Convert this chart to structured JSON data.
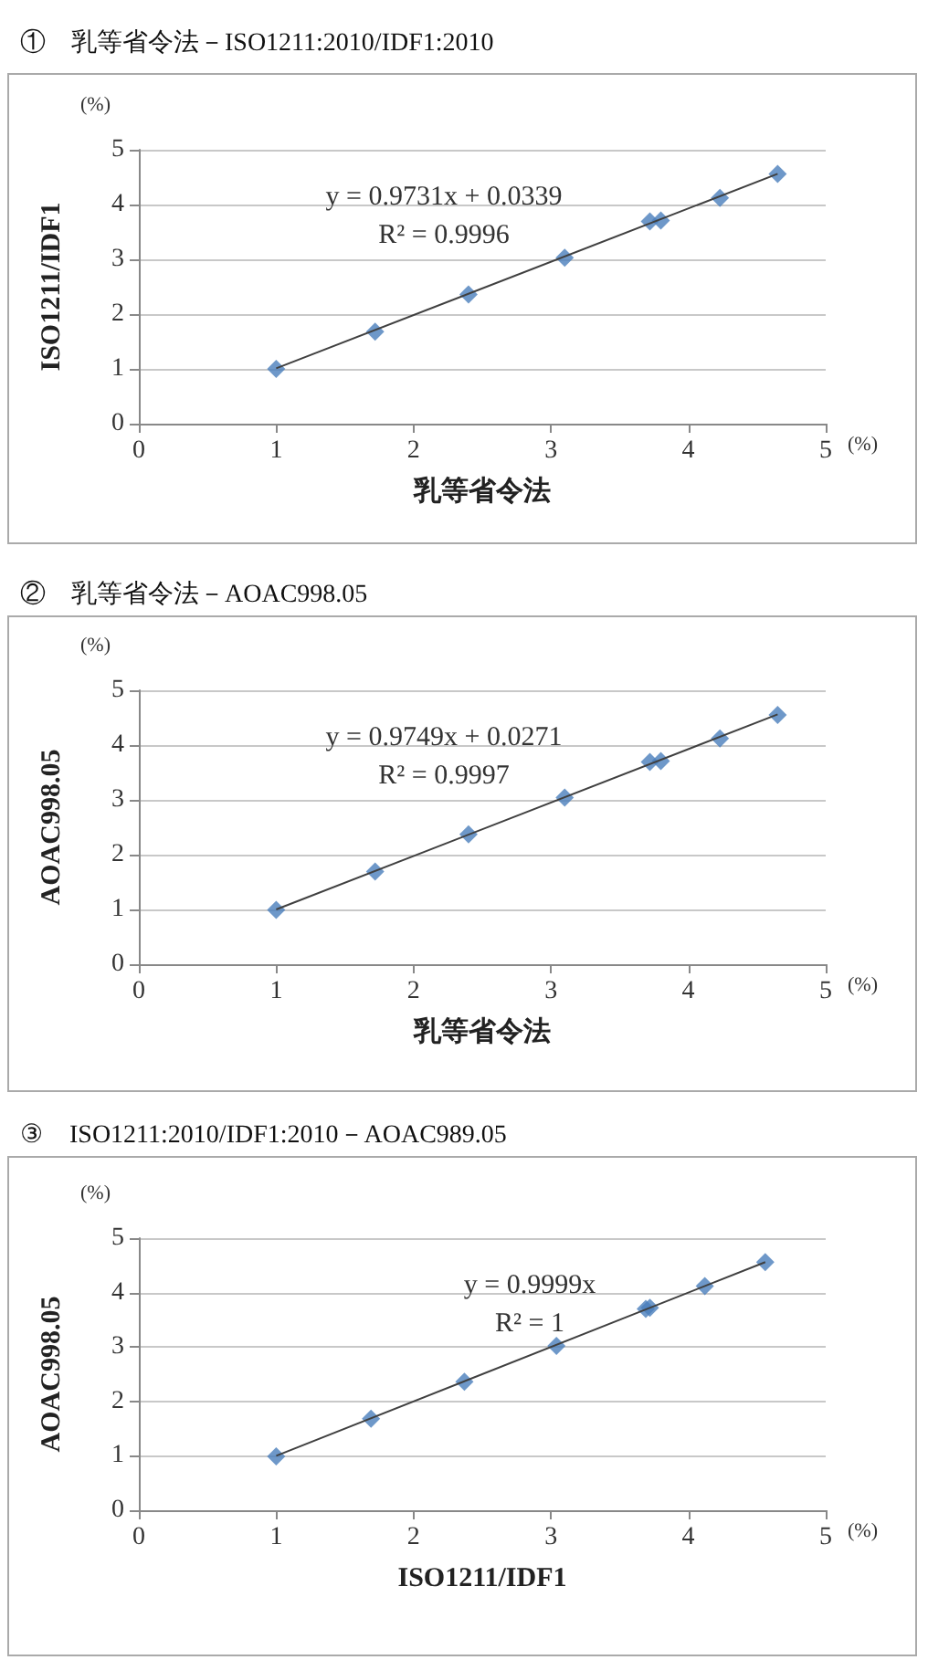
{
  "chart_data": [
    {
      "type": "scatter",
      "title": "①　乳等省令法－ISO1211:2010/IDF1:2010",
      "xlabel": "乳等省令法",
      "ylabel": "ISO1211/IDF1",
      "marker": "diamond",
      "grid": "y",
      "xlim": [
        0,
        5
      ],
      "ylim": [
        0,
        5
      ],
      "xticks": [
        0,
        1,
        2,
        3,
        4,
        5
      ],
      "yticks": [
        0,
        1,
        2,
        3,
        4,
        5
      ],
      "annotations": [
        "(%)",
        "(%)",
        "y = 0.9731x + 0.0339",
        "R² = 0.9996"
      ],
      "series": [
        {
          "color": "#4a7ebb",
          "x": [
            1.0,
            1.72,
            2.4,
            3.1,
            3.72,
            3.8,
            4.23,
            4.65
          ],
          "values": [
            1.0,
            1.68,
            2.36,
            3.03,
            3.69,
            3.71,
            4.12,
            4.56
          ]
        },
        {
          "type": "line",
          "marker": "none",
          "color": "#404040",
          "x": [
            1.0,
            4.65
          ],
          "values": [
            1.01,
            4.56
          ]
        }
      ]
    },
    {
      "type": "scatter",
      "title": "②　乳等省令法－AOAC998.05",
      "xlabel": "乳等省令法",
      "ylabel": "AOAC998.05",
      "marker": "diamond",
      "grid": "y",
      "xlim": [
        0,
        5
      ],
      "ylim": [
        0,
        5
      ],
      "xticks": [
        0,
        1,
        2,
        3,
        4,
        5
      ],
      "yticks": [
        0,
        1,
        2,
        3,
        4,
        5
      ],
      "annotations": [
        "(%)",
        "(%)",
        "y = 0.9749x + 0.0271",
        "R² = 0.9997"
      ],
      "series": [
        {
          "color": "#4a7ebb",
          "x": [
            1.0,
            1.72,
            2.4,
            3.1,
            3.72,
            3.8,
            4.23,
            4.65
          ],
          "values": [
            0.99,
            1.69,
            2.37,
            3.04,
            3.69,
            3.71,
            4.12,
            4.55
          ]
        },
        {
          "type": "line",
          "marker": "none",
          "color": "#404040",
          "x": [
            1.0,
            4.65
          ],
          "values": [
            1.0,
            4.56
          ]
        }
      ]
    },
    {
      "type": "scatter",
      "title": "③　ISO1211:2010/IDF1:2010－AOAC989.05",
      "xlabel": "ISO1211/IDF1",
      "ylabel": "AOAC998.05",
      "marker": "diamond",
      "grid": "y",
      "xlim": [
        0,
        5
      ],
      "ylim": [
        0,
        5
      ],
      "xticks": [
        0,
        1,
        2,
        3,
        4,
        5
      ],
      "yticks": [
        0,
        1,
        2,
        3,
        4,
        5
      ],
      "annotations": [
        "(%)",
        "(%)",
        "y = 0.9999x",
        "R² = 1"
      ],
      "series": [
        {
          "color": "#4a7ebb",
          "x": [
            1.0,
            1.69,
            2.37,
            3.04,
            3.69,
            3.72,
            4.12,
            4.56
          ],
          "values": [
            0.99,
            1.68,
            2.36,
            3.02,
            3.7,
            3.72,
            4.12,
            4.56
          ]
        },
        {
          "type": "line",
          "marker": "none",
          "color": "#404040",
          "x": [
            1.0,
            4.56
          ],
          "values": [
            1.0,
            4.56
          ]
        }
      ]
    }
  ]
}
